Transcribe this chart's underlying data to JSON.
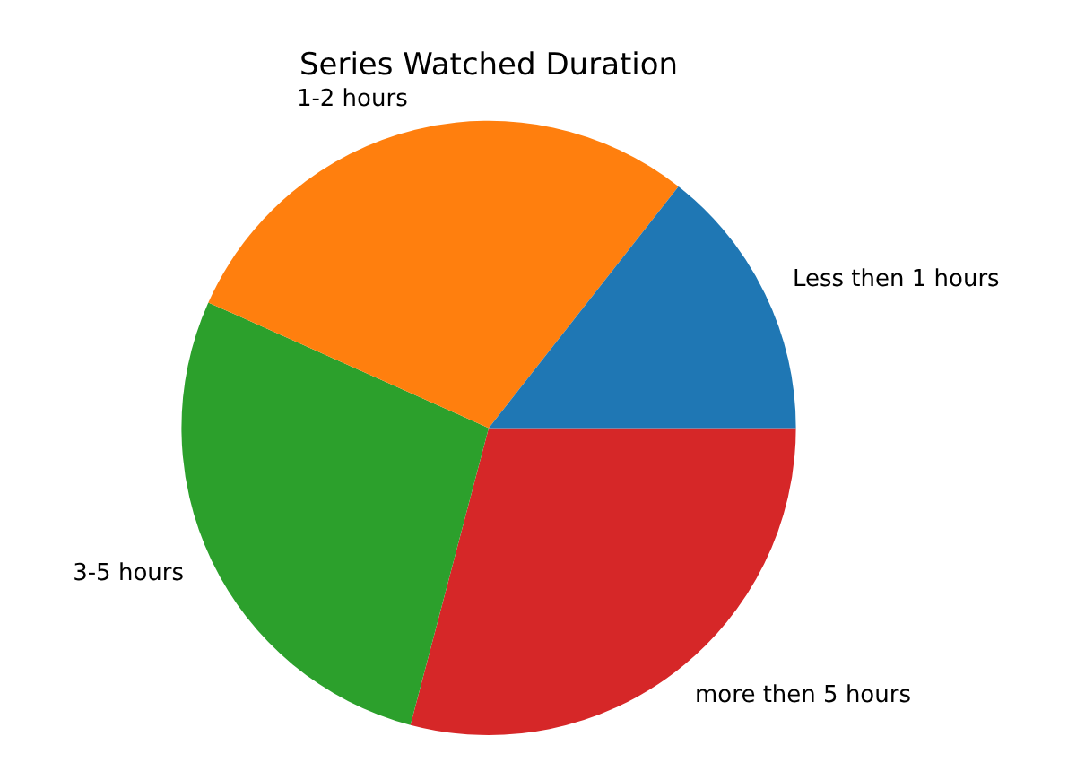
{
  "chart_data": {
    "type": "pie",
    "title": "Series Watched Duration",
    "categories": [
      "Less then 1 hours",
      "1-2 hours",
      "3-5 hours",
      "more then 5 hours"
    ],
    "values": [
      14.4,
      28.9,
      27.6,
      29.1
    ],
    "colors": [
      "#1f77b4",
      "#ff7f0e",
      "#2ca02c",
      "#d62728"
    ],
    "legend": false
  }
}
